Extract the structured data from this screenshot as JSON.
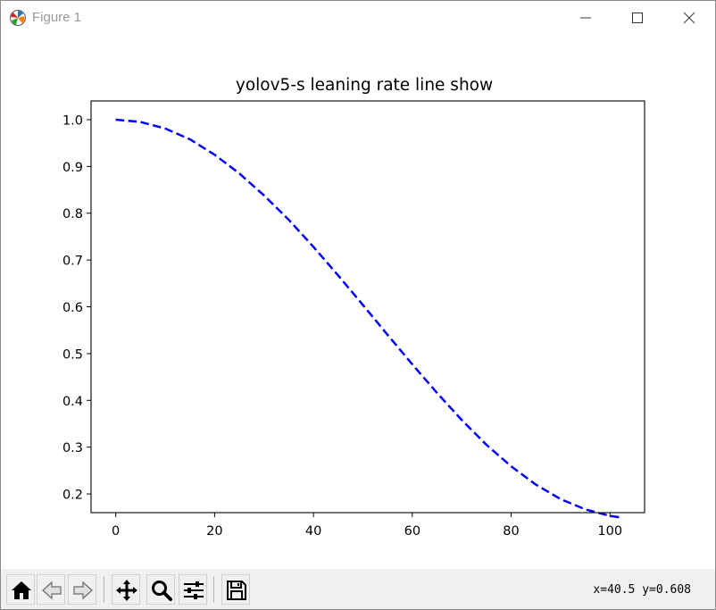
{
  "window": {
    "title": "Figure 1"
  },
  "toolbar": {
    "buttons": [
      "home-icon",
      "back-icon",
      "forward-icon",
      "pan-icon",
      "zoom-icon",
      "configure-subplots-icon",
      "save-icon"
    ],
    "coords_readout": "x=40.5 y=0.608"
  },
  "chart_data": {
    "type": "line",
    "title": "yolov5-s leaning rate line show",
    "xlabel": "",
    "ylabel": "",
    "xlim": [
      -5,
      107
    ],
    "ylim": [
      0.16,
      1.04
    ],
    "xticks": [
      0,
      20,
      40,
      60,
      80,
      100
    ],
    "yticks": [
      0.2,
      0.3,
      0.4,
      0.5,
      0.6,
      0.7,
      0.8,
      0.9,
      1.0
    ],
    "xtick_labels": [
      "0",
      "20",
      "40",
      "60",
      "80",
      "100"
    ],
    "ytick_labels": [
      "0.2",
      "0.3",
      "0.4",
      "0.5",
      "0.6",
      "0.7",
      "0.8",
      "0.9",
      "1.0"
    ],
    "grid": false,
    "series": [
      {
        "line_style": "dashed",
        "color": "#0000ff",
        "x": [
          0,
          5,
          10,
          15,
          20,
          25,
          30,
          35,
          40,
          45,
          50,
          55,
          60,
          65,
          70,
          75,
          80,
          85,
          90,
          95,
          100,
          102
        ],
        "y": [
          1.0,
          0.995,
          0.981,
          0.958,
          0.925,
          0.885,
          0.838,
          0.786,
          0.728,
          0.667,
          0.604,
          0.54,
          0.477,
          0.416,
          0.358,
          0.305,
          0.259,
          0.22,
          0.189,
          0.167,
          0.153,
          0.15
        ]
      }
    ]
  }
}
